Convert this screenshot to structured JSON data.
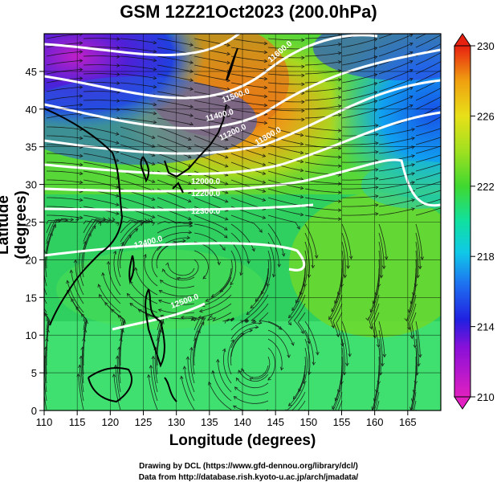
{
  "title": "GSM 12Z21Oct2023 (200.0hPa)",
  "xaxis": {
    "label": "Longitude (degrees)",
    "min": 110,
    "max": 170,
    "ticks": [
      110,
      115,
      120,
      125,
      130,
      135,
      140,
      145,
      150,
      155,
      160,
      165
    ]
  },
  "yaxis": {
    "label": "Latitude (degrees)",
    "min": 0,
    "max": 50,
    "ticks": [
      0,
      5,
      10,
      15,
      20,
      25,
      30,
      35,
      40,
      45
    ]
  },
  "colorbar": {
    "min": 210,
    "max": 230,
    "ticks": [
      210,
      214,
      218,
      222,
      226,
      230
    ]
  },
  "contour_labels": [
    "11600.0",
    "11500.0",
    "11400.0",
    "11200.0",
    "11800.0",
    "12000.0",
    "12200.0",
    "12300.0",
    "12400.0",
    "12500.0"
  ],
  "credits": {
    "line1": "Drawing by DCL (https://www.gfd-dennou.org/library/dcl/)",
    "line2": "Data from http://database.rish.kyoto-u.ac.jp/arch/jmadata/"
  }
}
